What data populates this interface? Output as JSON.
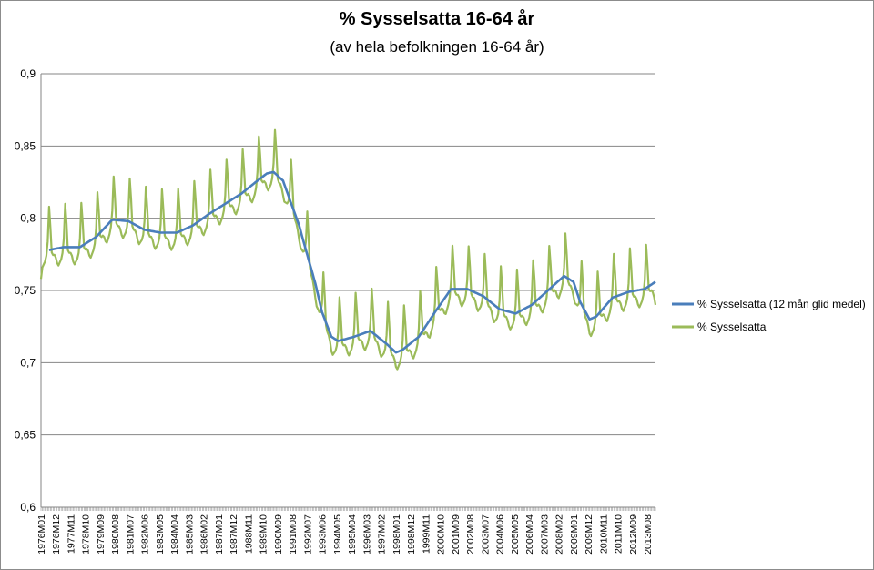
{
  "chart_data": {
    "type": "line",
    "title": "% Sysselsatta 16-64 år",
    "subtitle": "(av hela befolkningen 16-64 år)",
    "xlabel": "",
    "ylabel": "",
    "ylim": [
      0.6,
      0.9
    ],
    "yticks": [
      "0,6",
      "0,65",
      "0,7",
      "0,75",
      "0,8",
      "0,85",
      "0,9"
    ],
    "grid": true,
    "legend_position": "right",
    "x_range": [
      "1976M01",
      "2014M02"
    ],
    "x_tick_labels": [
      "1976M01",
      "1976M12",
      "1977M11",
      "1978M10",
      "1979M09",
      "1980M08",
      "1981M07",
      "1982M06",
      "1983M05",
      "1984M04",
      "1985M03",
      "1986M02",
      "1987M01",
      "1987M12",
      "1988M11",
      "1989M10",
      "1990M09",
      "1991M08",
      "1992M07",
      "1993M06",
      "1994M05",
      "1995M04",
      "1996M03",
      "1997M02",
      "1998M01",
      "1998M12",
      "1999M11",
      "2000M10",
      "2001M09",
      "2002M08",
      "2003M07",
      "2004M06",
      "2005M05",
      "2006M04",
      "2007M03",
      "2008M02",
      "2009M01",
      "2009M12",
      "2010M11",
      "2011M10",
      "2012M09",
      "2013M08"
    ],
    "series": [
      {
        "name": "% Sysselsatta (12 mån glid medel)",
        "color": "#4a7ebb",
        "points": [
          [
            "1976M07",
            0.778
          ],
          [
            "1977M06",
            0.78
          ],
          [
            "1978M06",
            0.78
          ],
          [
            "1979M06",
            0.787
          ],
          [
            "1980M06",
            0.799
          ],
          [
            "1981M06",
            0.798
          ],
          [
            "1982M06",
            0.792
          ],
          [
            "1983M06",
            0.79
          ],
          [
            "1984M06",
            0.79
          ],
          [
            "1985M06",
            0.795
          ],
          [
            "1986M06",
            0.803
          ],
          [
            "1987M06",
            0.81
          ],
          [
            "1988M06",
            0.817
          ],
          [
            "1989M06",
            0.826
          ],
          [
            "1990M01",
            0.831
          ],
          [
            "1990M06",
            0.832
          ],
          [
            "1991M01",
            0.826
          ],
          [
            "1991M06",
            0.813
          ],
          [
            "1992M01",
            0.795
          ],
          [
            "1992M06",
            0.778
          ],
          [
            "1993M01",
            0.755
          ],
          [
            "1993M06",
            0.735
          ],
          [
            "1994M01",
            0.718
          ],
          [
            "1994M06",
            0.715
          ],
          [
            "1995M06",
            0.718
          ],
          [
            "1996M06",
            0.722
          ],
          [
            "1997M06",
            0.713
          ],
          [
            "1998M01",
            0.707
          ],
          [
            "1998M06",
            0.709
          ],
          [
            "1999M06",
            0.718
          ],
          [
            "2000M06",
            0.735
          ],
          [
            "2001M06",
            0.751
          ],
          [
            "2002M06",
            0.751
          ],
          [
            "2003M06",
            0.746
          ],
          [
            "2004M06",
            0.737
          ],
          [
            "2005M06",
            0.734
          ],
          [
            "2006M06",
            0.74
          ],
          [
            "2007M06",
            0.75
          ],
          [
            "2008M06",
            0.76
          ],
          [
            "2009M01",
            0.756
          ],
          [
            "2009M06",
            0.742
          ],
          [
            "2010M01",
            0.73
          ],
          [
            "2010M06",
            0.732
          ],
          [
            "2011M06",
            0.745
          ],
          [
            "2012M06",
            0.749
          ],
          [
            "2013M06",
            0.751
          ],
          [
            "2014M02",
            0.756
          ]
        ]
      },
      {
        "name": "% Sysselsatta",
        "color": "#9bbb59",
        "seasonal_amplitude": {
          "peak": "summer",
          "height": 0.04,
          "trough": -0.012
        },
        "trend_ref": "% Sysselsatta (12 mån glid medel)",
        "endpoints": [
          [
            "1976M01",
            0.758
          ],
          [
            "2014M02",
            0.74
          ]
        ]
      }
    ]
  }
}
